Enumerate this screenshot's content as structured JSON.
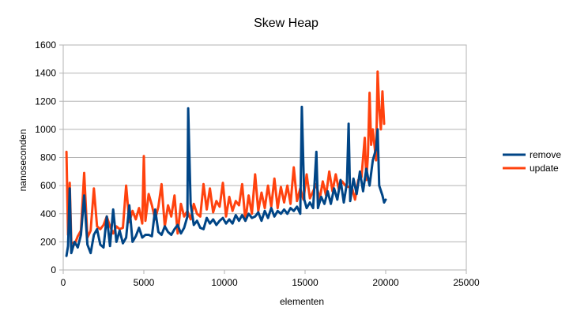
{
  "chart_data": {
    "type": "line",
    "title": "Skew Heap",
    "xlabel": "elementen",
    "ylabel": "nanoseconden",
    "xlim": [
      0,
      25000
    ],
    "ylim": [
      0,
      1600
    ],
    "xticks": [
      0,
      5000,
      10000,
      15000,
      20000,
      25000
    ],
    "yticks": [
      0,
      200,
      400,
      600,
      800,
      1000,
      1200,
      1400,
      1600
    ],
    "grid": true,
    "legend_position": "right",
    "series": [
      {
        "name": "remove",
        "color": "#004586",
        "points": [
          [
            200,
            100
          ],
          [
            300,
            170
          ],
          [
            400,
            580
          ],
          [
            500,
            120
          ],
          [
            700,
            200
          ],
          [
            900,
            160
          ],
          [
            1100,
            250
          ],
          [
            1300,
            530
          ],
          [
            1500,
            180
          ],
          [
            1700,
            120
          ],
          [
            1900,
            250
          ],
          [
            2100,
            290
          ],
          [
            2300,
            180
          ],
          [
            2500,
            160
          ],
          [
            2700,
            380
          ],
          [
            2900,
            170
          ],
          [
            3100,
            430
          ],
          [
            3300,
            200
          ],
          [
            3500,
            280
          ],
          [
            3700,
            190
          ],
          [
            3900,
            230
          ],
          [
            4100,
            460
          ],
          [
            4300,
            200
          ],
          [
            4500,
            240
          ],
          [
            4700,
            300
          ],
          [
            4900,
            230
          ],
          [
            5100,
            250
          ],
          [
            5300,
            250
          ],
          [
            5500,
            240
          ],
          [
            5700,
            430
          ],
          [
            5900,
            270
          ],
          [
            6100,
            250
          ],
          [
            6300,
            310
          ],
          [
            6500,
            270
          ],
          [
            6700,
            250
          ],
          [
            6900,
            290
          ],
          [
            7100,
            320
          ],
          [
            7300,
            260
          ],
          [
            7500,
            300
          ],
          [
            7700,
            380
          ],
          [
            7750,
            1150
          ],
          [
            7900,
            470
          ],
          [
            8100,
            320
          ],
          [
            8300,
            350
          ],
          [
            8500,
            300
          ],
          [
            8700,
            290
          ],
          [
            8900,
            370
          ],
          [
            9100,
            330
          ],
          [
            9300,
            360
          ],
          [
            9500,
            320
          ],
          [
            9700,
            350
          ],
          [
            9900,
            370
          ],
          [
            10100,
            330
          ],
          [
            10300,
            360
          ],
          [
            10500,
            330
          ],
          [
            10700,
            390
          ],
          [
            10900,
            350
          ],
          [
            11100,
            390
          ],
          [
            11300,
            350
          ],
          [
            11500,
            400
          ],
          [
            11700,
            370
          ],
          [
            11900,
            380
          ],
          [
            12100,
            410
          ],
          [
            12300,
            350
          ],
          [
            12500,
            420
          ],
          [
            12700,
            370
          ],
          [
            12900,
            440
          ],
          [
            13100,
            380
          ],
          [
            13300,
            420
          ],
          [
            13500,
            400
          ],
          [
            13700,
            430
          ],
          [
            13900,
            400
          ],
          [
            14100,
            440
          ],
          [
            14300,
            420
          ],
          [
            14500,
            450
          ],
          [
            14700,
            400
          ],
          [
            14800,
            1160
          ],
          [
            14950,
            500
          ],
          [
            15100,
            440
          ],
          [
            15300,
            480
          ],
          [
            15500,
            440
          ],
          [
            15700,
            840
          ],
          [
            15800,
            440
          ],
          [
            16000,
            520
          ],
          [
            16200,
            470
          ],
          [
            16400,
            560
          ],
          [
            16600,
            470
          ],
          [
            16800,
            580
          ],
          [
            17000,
            500
          ],
          [
            17200,
            640
          ],
          [
            17400,
            480
          ],
          [
            17600,
            620
          ],
          [
            17700,
            1040
          ],
          [
            17800,
            490
          ],
          [
            18000,
            650
          ],
          [
            18200,
            540
          ],
          [
            18400,
            700
          ],
          [
            18600,
            560
          ],
          [
            18800,
            720
          ],
          [
            19000,
            600
          ],
          [
            19200,
            780
          ],
          [
            19400,
            860
          ],
          [
            19500,
            1000
          ],
          [
            19600,
            600
          ],
          [
            19800,
            530
          ],
          [
            19900,
            480
          ],
          [
            20000,
            500
          ]
        ]
      },
      {
        "name": "update",
        "color": "#ff420e",
        "points": [
          [
            200,
            840
          ],
          [
            300,
            250
          ],
          [
            400,
            620
          ],
          [
            500,
            200
          ],
          [
            700,
            180
          ],
          [
            900,
            240
          ],
          [
            1100,
            280
          ],
          [
            1300,
            690
          ],
          [
            1500,
            230
          ],
          [
            1700,
            280
          ],
          [
            1900,
            580
          ],
          [
            2100,
            310
          ],
          [
            2300,
            290
          ],
          [
            2500,
            320
          ],
          [
            2700,
            380
          ],
          [
            2900,
            310
          ],
          [
            3100,
            260
          ],
          [
            3300,
            310
          ],
          [
            3500,
            290
          ],
          [
            3700,
            300
          ],
          [
            3900,
            600
          ],
          [
            4100,
            340
          ],
          [
            4300,
            420
          ],
          [
            4500,
            360
          ],
          [
            4700,
            440
          ],
          [
            4900,
            330
          ],
          [
            5000,
            810
          ],
          [
            5100,
            350
          ],
          [
            5300,
            540
          ],
          [
            5500,
            460
          ],
          [
            5700,
            360
          ],
          [
            5900,
            450
          ],
          [
            6100,
            610
          ],
          [
            6300,
            310
          ],
          [
            6500,
            460
          ],
          [
            6700,
            380
          ],
          [
            6900,
            530
          ],
          [
            7100,
            260
          ],
          [
            7300,
            470
          ],
          [
            7500,
            380
          ],
          [
            7700,
            420
          ],
          [
            7900,
            360
          ],
          [
            8100,
            470
          ],
          [
            8300,
            400
          ],
          [
            8500,
            380
          ],
          [
            8700,
            610
          ],
          [
            8900,
            430
          ],
          [
            9100,
            580
          ],
          [
            9300,
            410
          ],
          [
            9500,
            490
          ],
          [
            9700,
            450
          ],
          [
            9900,
            620
          ],
          [
            10100,
            380
          ],
          [
            10300,
            520
          ],
          [
            10500,
            420
          ],
          [
            10700,
            490
          ],
          [
            10900,
            460
          ],
          [
            11100,
            610
          ],
          [
            11300,
            350
          ],
          [
            11500,
            530
          ],
          [
            11700,
            400
          ],
          [
            11900,
            680
          ],
          [
            12100,
            420
          ],
          [
            12300,
            550
          ],
          [
            12500,
            440
          ],
          [
            12700,
            600
          ],
          [
            12900,
            450
          ],
          [
            13100,
            650
          ],
          [
            13300,
            440
          ],
          [
            13500,
            590
          ],
          [
            13700,
            480
          ],
          [
            13900,
            600
          ],
          [
            14100,
            470
          ],
          [
            14300,
            730
          ],
          [
            14500,
            490
          ],
          [
            14700,
            580
          ],
          [
            14900,
            500
          ],
          [
            15100,
            680
          ],
          [
            15300,
            510
          ],
          [
            15500,
            560
          ],
          [
            15700,
            610
          ],
          [
            15900,
            500
          ],
          [
            16100,
            630
          ],
          [
            16300,
            530
          ],
          [
            16500,
            700
          ],
          [
            16700,
            560
          ],
          [
            16900,
            680
          ],
          [
            17100,
            570
          ],
          [
            17300,
            630
          ],
          [
            17500,
            600
          ],
          [
            17700,
            590
          ],
          [
            17900,
            590
          ],
          [
            18100,
            500
          ],
          [
            18300,
            640
          ],
          [
            18500,
            660
          ],
          [
            18700,
            940
          ],
          [
            18800,
            640
          ],
          [
            18900,
            820
          ],
          [
            19000,
            1260
          ],
          [
            19100,
            890
          ],
          [
            19200,
            1000
          ],
          [
            19400,
            780
          ],
          [
            19500,
            1410
          ],
          [
            19600,
            1150
          ],
          [
            19700,
            1000
          ],
          [
            19800,
            1270
          ],
          [
            19900,
            1040
          ]
        ]
      }
    ]
  }
}
